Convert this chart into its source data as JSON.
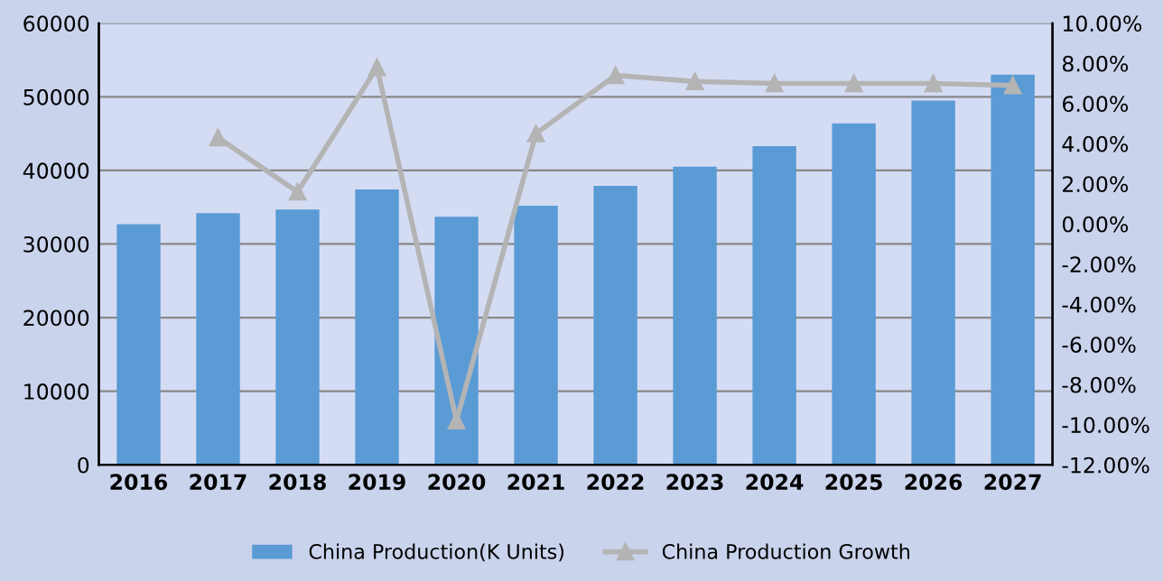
{
  "chart_data": {
    "type": "bar",
    "categories": [
      "2016",
      "2017",
      "2018",
      "2019",
      "2020",
      "2021",
      "2022",
      "2023",
      "2024",
      "2025",
      "2026",
      "2027"
    ],
    "series": [
      {
        "name": "China Production(K Units)",
        "color": "#5b9bd5",
        "values": [
          32700,
          34200,
          34700,
          37400,
          33700,
          35200,
          37900,
          40500,
          43300,
          46400,
          49500,
          53000
        ]
      },
      {
        "name": "China Production Growth",
        "type": "line",
        "axis": "y2",
        "color": "#b4b4b4",
        "marker": "triangle",
        "values": [
          null,
          4.3,
          1.6,
          7.8,
          -9.8,
          4.5,
          7.4,
          7.1,
          7.0,
          7.0,
          7.0,
          6.9
        ]
      }
    ],
    "ylim": [
      0,
      60000
    ],
    "yticks": [
      0,
      10000,
      20000,
      30000,
      40000,
      50000,
      60000
    ],
    "y2lim": [
      -12,
      10
    ],
    "y2ticks": [
      {
        "value": -12,
        "label": "-12.00%"
      },
      {
        "value": -10,
        "label": "-10.00%"
      },
      {
        "value": -8,
        "label": "-8.00%"
      },
      {
        "value": -6,
        "label": "-6.00%"
      },
      {
        "value": -4,
        "label": "-4.00%"
      },
      {
        "value": -2,
        "label": "-2.00%"
      },
      {
        "value": 0,
        "label": "0.00%"
      },
      {
        "value": 2,
        "label": "2.00%"
      },
      {
        "value": 4,
        "label": "4.00%"
      },
      {
        "value": 6,
        "label": "6.00%"
      },
      {
        "value": 8,
        "label": "8.00%"
      },
      {
        "value": 10,
        "label": "10.00%"
      }
    ],
    "grid": "y",
    "legend": "bottom"
  }
}
